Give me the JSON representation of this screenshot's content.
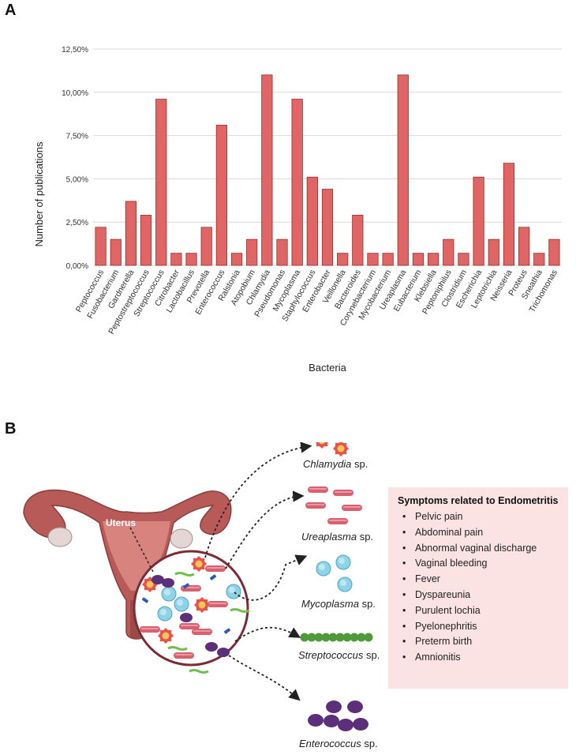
{
  "panel_a_label": "A",
  "panel_b_label": "B",
  "chart_data": {
    "type": "bar",
    "xlabel": "Bacteria",
    "ylabel": "Number of publications",
    "ylim": [
      0,
      12.5
    ],
    "yticks": [
      "0,00%",
      "2,50%",
      "5,00%",
      "7,50%",
      "10,00%",
      "12,50%"
    ],
    "ytick_values": [
      0,
      2.5,
      5,
      7.5,
      10,
      12.5
    ],
    "grid": true,
    "bar_color": "#e06666",
    "bar_edge_color": "#9a2b2b",
    "categories": [
      "Peptococcus",
      "Fusobacterium",
      "Gardnerella",
      "Peptostreptococcus",
      "Streptococcus",
      "Citrobacter",
      "Lactobacillus",
      "Prevotella",
      "Enterococcus",
      "Ralstonia",
      "Atopobium",
      "Chlamydia",
      "Pseudomonas",
      "Mycoplasma",
      "Staphylococcus",
      "Enterobacter",
      "Veillonella",
      "Bacteroides",
      "Corynebacterium",
      "Mycobacterium",
      "Ureaplasma",
      "Eubacterium",
      "Klebsiella",
      "Peptoniphilus",
      "Clostridium",
      "Escherichia",
      "Leptotrichia",
      "Neisseria",
      "Proteus",
      "Sneathia",
      "Trichomonas"
    ],
    "values": [
      2.2,
      1.5,
      3.7,
      2.9,
      9.6,
      0.7,
      0.7,
      2.2,
      8.1,
      0.7,
      1.5,
      11.0,
      1.5,
      9.6,
      5.1,
      4.4,
      0.7,
      2.9,
      0.7,
      0.7,
      11.0,
      0.7,
      0.7,
      1.5,
      0.7,
      5.1,
      1.5,
      5.9,
      2.2,
      0.7,
      1.5
    ]
  },
  "illustration": {
    "uterus_label": "Uterus",
    "species": [
      {
        "genus": "Chlamydia",
        "suffix": " sp."
      },
      {
        "genus": "Ureaplasma",
        "suffix": " sp."
      },
      {
        "genus": "Mycoplasma",
        "suffix": " sp."
      },
      {
        "genus": "Streptococcus",
        "suffix": " sp."
      },
      {
        "genus": "Enterococcus",
        "suffix": " sp."
      }
    ],
    "colors": {
      "chlamydia": "#e8524a",
      "ureaplasma": "#d9606e",
      "mycoplasma": "#8fd3e8",
      "streptococcus": "#4f9a3a",
      "enterococcus": "#5b2f79",
      "uterus": "#b85a58",
      "symptom_box": "#fbe3e4"
    }
  },
  "symptoms": {
    "title": "Symptoms related to Endometritis",
    "items": [
      "Pelvic pain",
      "Abdominal pain",
      "Abnormal vaginal discharge",
      "Vaginal bleeding",
      "Fever",
      "Dyspareunia",
      "Purulent lochia",
      "Pyelonephritis",
      "Preterm birth",
      "Amnionitis"
    ]
  }
}
